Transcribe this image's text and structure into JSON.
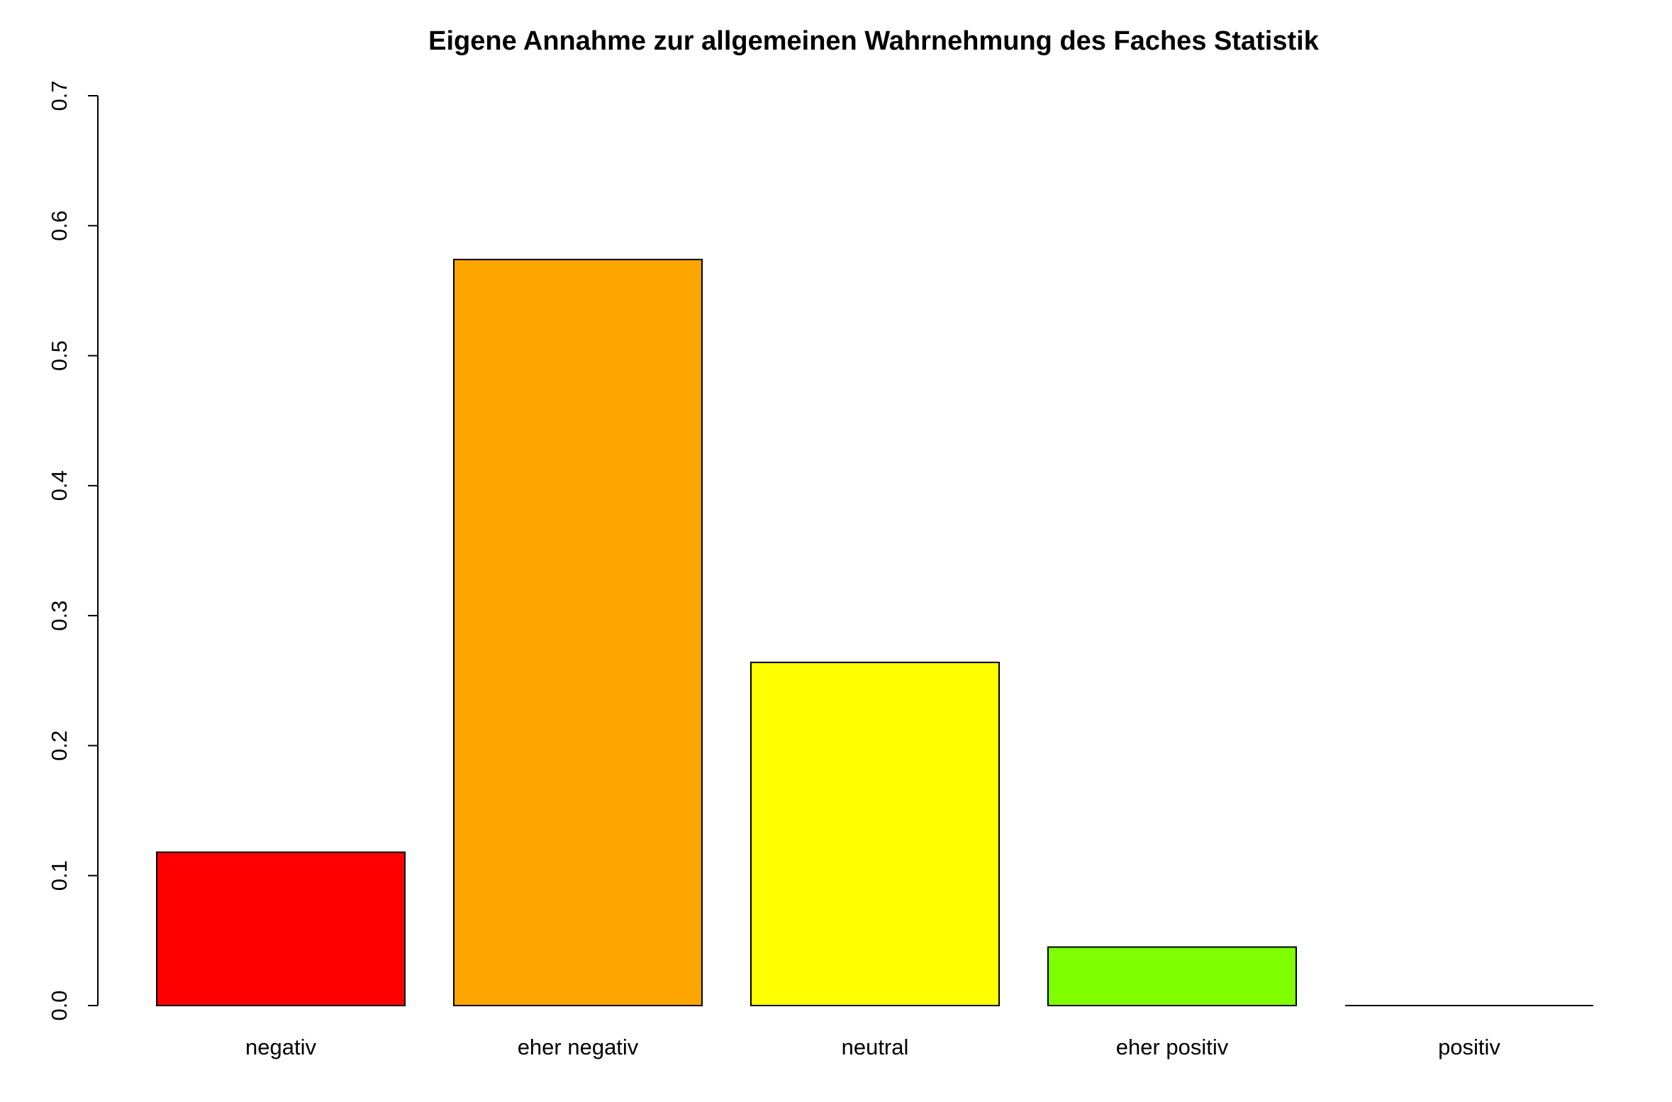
{
  "chart_data": {
    "type": "bar",
    "title": "Eigene Annahme zur allgemeinen Wahrnehmung des Faches Statistik",
    "xlabel": "",
    "ylabel": "",
    "categories": [
      "negativ",
      "eher negativ",
      "neutral",
      "eher positiv",
      "positiv"
    ],
    "values": [
      0.118,
      0.574,
      0.264,
      0.045,
      0.0
    ],
    "colors": [
      "#ff0000",
      "#ffa500",
      "#ffff00",
      "#7fff00",
      "#ffffff"
    ],
    "ylim": [
      0,
      0.7
    ],
    "yticks": [
      "0.0",
      "0.1",
      "0.2",
      "0.3",
      "0.4",
      "0.5",
      "0.6",
      "0.7"
    ],
    "grid": false,
    "legend": "none"
  }
}
